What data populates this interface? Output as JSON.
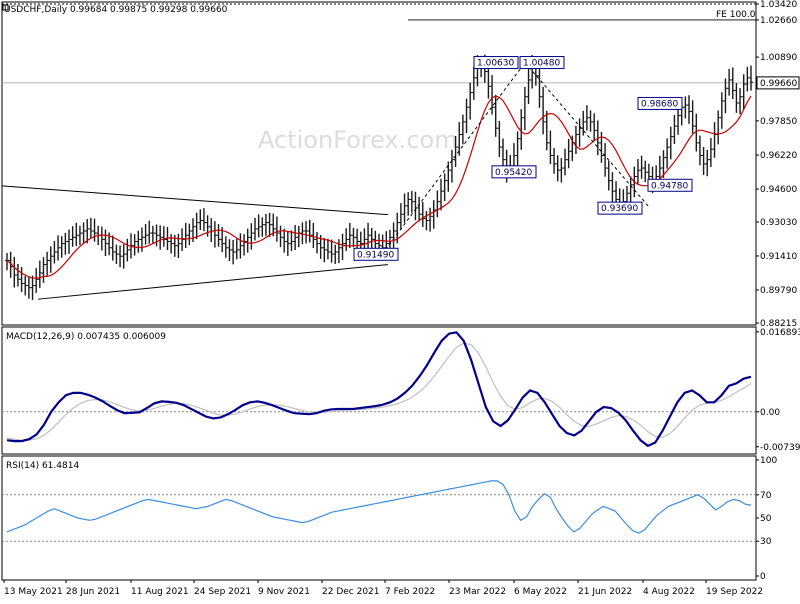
{
  "header": {
    "symbol": "USDCHF,Daily",
    "ohlc": "0.99684 0.99875 0.99298 0.99660",
    "watermark": "ActionForex.com"
  },
  "chart_data": [
    {
      "type": "line",
      "name": "price",
      "ylim": [
        0.88215,
        1.0342
      ],
      "y_ticks": [
        "1.03420",
        "1.02660",
        "1.00890",
        "0.99660",
        "0.97850",
        "0.96220",
        "0.94600",
        "0.93030",
        "0.91410",
        "0.89790",
        "0.88215"
      ],
      "x_ticks": [
        "13 May 2021",
        "28 Jun 2021",
        "11 Aug 2021",
        "24 Sep 2021",
        "9 Nov 2021",
        "22 Dec 2021",
        "7 Feb 2022",
        "23 Mar 2022",
        "6 May 2022",
        "21 Jun 2022",
        "4 Aug 2022",
        "19 Sep 2022"
      ],
      "bars_approx_close": [
        0.912,
        0.909,
        0.905,
        0.903,
        0.901,
        0.9,
        0.899,
        0.9,
        0.903,
        0.906,
        0.91,
        0.912,
        0.914,
        0.916,
        0.918,
        0.92,
        0.921,
        0.922,
        0.923,
        0.924,
        0.925,
        0.926,
        0.927,
        0.926,
        0.925,
        0.924,
        0.922,
        0.92,
        0.918,
        0.916,
        0.915,
        0.914,
        0.915,
        0.917,
        0.919,
        0.921,
        0.922,
        0.923,
        0.924,
        0.925,
        0.925,
        0.924,
        0.923,
        0.922,
        0.921,
        0.92,
        0.919,
        0.92,
        0.922,
        0.924,
        0.926,
        0.928,
        0.93,
        0.931,
        0.93,
        0.928,
        0.926,
        0.924,
        0.922,
        0.92,
        0.918,
        0.917,
        0.916,
        0.917,
        0.919,
        0.921,
        0.923,
        0.925,
        0.927,
        0.928,
        0.929,
        0.93,
        0.929,
        0.927,
        0.925,
        0.923,
        0.921,
        0.92,
        0.921,
        0.923,
        0.925,
        0.926,
        0.926,
        0.924,
        0.922,
        0.92,
        0.918,
        0.917,
        0.916,
        0.915,
        0.916,
        0.918,
        0.92,
        0.922,
        0.924,
        0.923,
        0.921,
        0.92,
        0.922,
        0.924,
        0.922,
        0.92,
        0.919,
        0.918,
        0.92,
        0.923,
        0.926,
        0.93,
        0.934,
        0.938,
        0.941,
        0.94,
        0.937,
        0.934,
        0.932,
        0.931,
        0.933,
        0.936,
        0.94,
        0.945,
        0.95,
        0.955,
        0.96,
        0.966,
        0.972,
        0.978,
        0.985,
        0.992,
        0.999,
        1.004,
        1.006,
        1.002,
        0.995,
        0.985,
        0.975,
        0.966,
        0.96,
        0.955,
        0.957,
        0.962,
        0.97,
        0.98,
        0.99,
        0.998,
        1.004,
        1.0,
        0.99,
        0.978,
        0.968,
        0.962,
        0.958,
        0.955,
        0.956,
        0.96,
        0.964,
        0.968,
        0.972,
        0.975,
        0.978,
        0.98,
        0.978,
        0.974,
        0.968,
        0.962,
        0.956,
        0.95,
        0.945,
        0.941,
        0.938,
        0.94,
        0.944,
        0.948,
        0.952,
        0.955,
        0.956,
        0.954,
        0.952,
        0.95,
        0.952,
        0.956,
        0.961,
        0.966,
        0.971,
        0.976,
        0.981,
        0.985,
        0.986,
        0.983,
        0.976,
        0.968,
        0.962,
        0.958,
        0.96,
        0.965,
        0.972,
        0.98,
        0.988,
        0.994,
        0.998,
        0.993,
        0.987,
        0.99,
        0.996,
        0.999,
        0.997
      ]
    },
    {
      "type": "line",
      "name": "MACD(12,26,9)",
      "label": "MACD(12,26,9) 0.007435 0.006009",
      "y_ticks": [
        "0.016893",
        "0.00",
        "-0.007393"
      ],
      "ylim": [
        -0.0085,
        0.0175
      ],
      "values": [
        -0.006,
        -0.0062,
        -0.0062,
        -0.0058,
        -0.0048,
        -0.0028,
        0.0,
        0.002,
        0.0035,
        0.004,
        0.004,
        0.0036,
        0.003,
        0.0022,
        0.0012,
        0.0003,
        -0.0003,
        -0.0002,
        -0.0001,
        0.0008,
        0.0018,
        0.0022,
        0.0021,
        0.0019,
        0.0014,
        0.0006,
        -0.0002,
        -0.001,
        -0.0014,
        -0.0012,
        -0.0005,
        0.0004,
        0.0014,
        0.002,
        0.0022,
        0.0019,
        0.0014,
        0.0008,
        0.0002,
        -0.0003,
        -0.0004,
        -0.0005,
        -0.0003,
        0.0002,
        0.0005,
        0.0006,
        0.0006,
        0.0006,
        0.0008,
        0.001,
        0.0012,
        0.0015,
        0.002,
        0.0028,
        0.004,
        0.0055,
        0.0075,
        0.0098,
        0.0125,
        0.015,
        0.0165,
        0.0168,
        0.015,
        0.011,
        0.006,
        0.001,
        -0.002,
        -0.003,
        -0.0018,
        0.0005,
        0.003,
        0.0045,
        0.004,
        0.002,
        -0.0005,
        -0.003,
        -0.0045,
        -0.005,
        -0.004,
        -0.002,
        0.0,
        0.001,
        0.0008,
        -0.0002,
        -0.0018,
        -0.004,
        -0.006,
        -0.0072,
        -0.0065,
        -0.004,
        -0.001,
        0.002,
        0.004,
        0.0045,
        0.0035,
        0.002,
        0.002,
        0.0035,
        0.0055,
        0.006,
        0.007,
        0.0074
      ],
      "signal": [
        -0.0055,
        -0.0058,
        -0.006,
        -0.006,
        -0.0057,
        -0.005,
        -0.0038,
        -0.0022,
        -0.0006,
        0.0008,
        0.0018,
        0.0024,
        0.0026,
        0.0025,
        0.0021,
        0.0015,
        0.0009,
        0.0004,
        0.0002,
        0.0003,
        0.0007,
        0.0012,
        0.0016,
        0.0018,
        0.0017,
        0.0014,
        0.0009,
        0.0003,
        -0.0003,
        -0.0007,
        -0.0007,
        -0.0005,
        0.0,
        0.0006,
        0.0011,
        0.0014,
        0.0015,
        0.0014,
        0.0011,
        0.0007,
        0.0003,
        0.0,
        -0.0001,
        -0.0001,
        0.0,
        0.0002,
        0.0003,
        0.0004,
        0.0005,
        0.0006,
        0.0008,
        0.001,
        0.0013,
        0.0017,
        0.0023,
        0.0031,
        0.0042,
        0.0057,
        0.0075,
        0.0096,
        0.0117,
        0.0136,
        0.0145,
        0.0142,
        0.0124,
        0.0095,
        0.0062,
        0.0033,
        0.0013,
        0.0005,
        0.0009,
        0.0019,
        0.0027,
        0.0028,
        0.0022,
        0.001,
        -0.0006,
        -0.002,
        -0.0029,
        -0.0031,
        -0.0026,
        -0.0019,
        -0.0012,
        -0.0008,
        -0.001,
        -0.0017,
        -0.0028,
        -0.0042,
        -0.0052,
        -0.0054,
        -0.0046,
        -0.0031,
        -0.0013,
        0.0003,
        0.0014,
        0.0018,
        0.002,
        0.0024,
        0.0032,
        0.0041,
        0.005,
        0.006
      ]
    },
    {
      "type": "line",
      "name": "RSI(14)",
      "label": "RSI(14) 61.4814",
      "y_ticks": [
        "100",
        "70",
        "50",
        "30",
        "0"
      ],
      "ylim": [
        0,
        100
      ],
      "values": [
        38,
        40,
        42,
        44,
        47,
        50,
        53,
        56,
        58,
        56,
        54,
        52,
        50,
        49,
        48,
        49,
        51,
        53,
        55,
        57,
        59,
        61,
        63,
        65,
        66,
        65,
        64,
        63,
        62,
        61,
        60,
        59,
        58,
        59,
        60,
        62,
        64,
        66,
        65,
        63,
        61,
        59,
        57,
        55,
        53,
        51,
        50,
        49,
        48,
        47,
        46,
        47,
        49,
        51,
        53,
        55,
        56,
        57,
        58,
        59,
        60,
        61,
        62,
        63,
        64,
        65,
        66,
        67,
        68,
        69,
        70,
        71,
        72,
        73,
        74,
        75,
        76,
        77,
        78,
        79,
        80,
        81,
        82,
        82,
        79,
        70,
        56,
        48,
        51,
        60,
        66,
        71,
        68,
        58,
        50,
        43,
        38,
        41,
        47,
        53,
        57,
        60,
        58,
        56,
        50,
        44,
        39,
        37,
        40,
        46,
        52,
        56,
        60,
        62,
        64,
        66,
        68,
        70,
        67,
        62,
        57,
        60,
        64,
        66,
        65,
        62,
        61
      ]
    }
  ],
  "annotations": {
    "fe_label": "FE 100.0",
    "last_price": "0.99660",
    "levels": [
      "1.00630",
      "1.00480",
      "0.98680",
      "0.95420",
      "0.94780",
      "0.93690",
      "0.91490"
    ]
  },
  "colors": {
    "price_bars": "#1a1a1a",
    "ma": "#cc0000",
    "macd": "#00008b",
    "signal": "#c0c0c0",
    "rsi": "#3c8ce6",
    "annotation_border": "#00008b"
  }
}
